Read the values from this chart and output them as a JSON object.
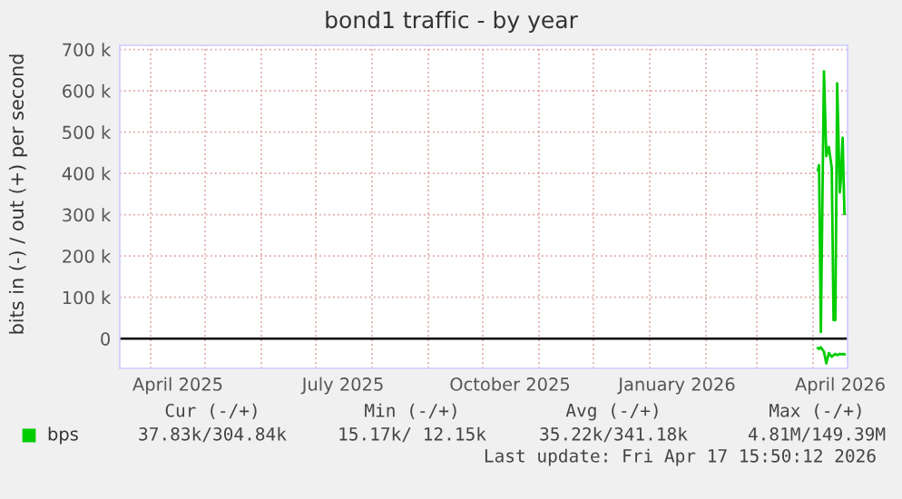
{
  "chart_data": {
    "type": "line",
    "title": "bond1 traffic - by year",
    "ylabel": "bits in (-) / out (+) per second",
    "xlim": [
      "2025-03-15",
      "2026-04-20"
    ],
    "xticks": [
      {
        "value": "2025-04-01",
        "label": null
      },
      {
        "value": "2025-04-16",
        "label": "April 2025"
      },
      {
        "value": "2025-05-01",
        "label": null
      },
      {
        "value": "2025-06-01",
        "label": null
      },
      {
        "value": "2025-07-01",
        "label": null
      },
      {
        "value": "2025-07-16",
        "label": "July 2025"
      },
      {
        "value": "2025-08-01",
        "label": null
      },
      {
        "value": "2025-09-01",
        "label": null
      },
      {
        "value": "2025-10-01",
        "label": null
      },
      {
        "value": "2025-10-16",
        "label": "October 2025"
      },
      {
        "value": "2025-11-01",
        "label": null
      },
      {
        "value": "2025-12-01",
        "label": null
      },
      {
        "value": "2026-01-01",
        "label": null
      },
      {
        "value": "2026-01-16",
        "label": "January 2026"
      },
      {
        "value": "2026-02-01",
        "label": null
      },
      {
        "value": "2026-03-01",
        "label": null
      },
      {
        "value": "2026-04-01",
        "label": null
      },
      {
        "value": "2026-04-16",
        "label": "April 2026"
      }
    ],
    "ylim": [
      -72000,
      710000
    ],
    "yticks": [
      0,
      {
        "value": 100000,
        "label": "100 k"
      },
      {
        "value": 200000,
        "label": "200 k"
      },
      {
        "value": 300000,
        "label": "300 k"
      },
      {
        "value": 400000,
        "label": "400 k"
      },
      {
        "value": 500000,
        "label": "500 k"
      },
      {
        "value": 600000,
        "label": "600 k"
      },
      {
        "value": 700000,
        "label": "700 k"
      }
    ],
    "grid": true,
    "legend": "bottom",
    "marker": "none",
    "line_style": "solid",
    "ref_lines": [
      {
        "axis": "y",
        "value": 0,
        "color": "#000000"
      }
    ],
    "series": [
      {
        "color": "#00cc00",
        "x": [
          "2026-04-03T16:00",
          "2026-04-04T07:00",
          "2026-04-05T07:00",
          "2026-04-07T00:00",
          "2026-04-08T07:00",
          "2026-04-09T17:00",
          "2026-04-11T07:00",
          "2026-04-12T07:00",
          "2026-04-13T07:00",
          "2026-04-14T07:00",
          "2026-04-15T17:00",
          "2026-04-16T07:00",
          "2026-04-17T07:00",
          "2026-04-18T07:00"
        ],
        "values": [
          -23000,
          -25000,
          -21000,
          -32000,
          -60000,
          -35000,
          -44000,
          -40000,
          -37000,
          -40000,
          -37000,
          -38000,
          -37000,
          -38000
        ]
      },
      {
        "name": "bps",
        "color": "#00cc00",
        "x": [
          "2026-04-03T16:00",
          "2026-04-04T07:00",
          "2026-04-05T07:00",
          "2026-04-07T00:00",
          "2026-04-08T07:00",
          "2026-04-09T17:00",
          "2026-04-11T07:00",
          "2026-04-12T07:00",
          "2026-04-13T07:00",
          "2026-04-14T07:00",
          "2026-04-15T17:00",
          "2026-04-16T07:00",
          "2026-04-17T07:00",
          "2026-04-18T07:00"
        ],
        "values": [
          408000,
          420000,
          16000,
          647000,
          442000,
          464000,
          413000,
          45000,
          45000,
          618000,
          354000,
          383000,
          486000,
          302000
        ]
      }
    ],
    "annotations": [
      "Cur (-/+)",
      "Min (-/+)",
      "Avg (-/+)",
      "Max (-/+)",
      "37.83k/304.84k",
      "15.17k/ 12.15k",
      "35.22k/341.18k",
      "4.81M/149.39M",
      "Last update: Fri Apr 17 15:50:12 2026"
    ]
  }
}
